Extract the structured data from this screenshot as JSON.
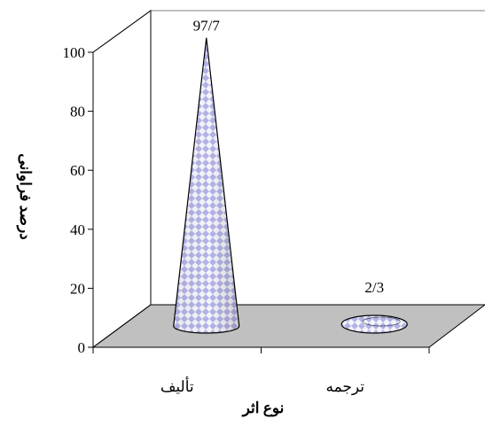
{
  "chart_data": {
    "type": "bar",
    "shape": "cone-3d",
    "categories": [
      "تألیف",
      "ترجمه"
    ],
    "values": [
      97.7,
      2.3
    ],
    "data_labels": [
      "97/7",
      "2/3"
    ],
    "xlabel": "نوع اثر",
    "ylabel": "درصد فراوانی",
    "ylim": [
      0,
      100
    ],
    "yticks": [
      0,
      20,
      40,
      60,
      80,
      100
    ],
    "ytick_labels": [
      "0",
      "20",
      "40",
      "60",
      "80",
      "100"
    ],
    "grid": false,
    "legend": "none",
    "colors": {
      "cone_fill": "#b3b3e6",
      "cone_pattern": "#ffffff",
      "floor": "#c0c0c0",
      "axes": "#000000",
      "back_wall": "#808080"
    }
  }
}
